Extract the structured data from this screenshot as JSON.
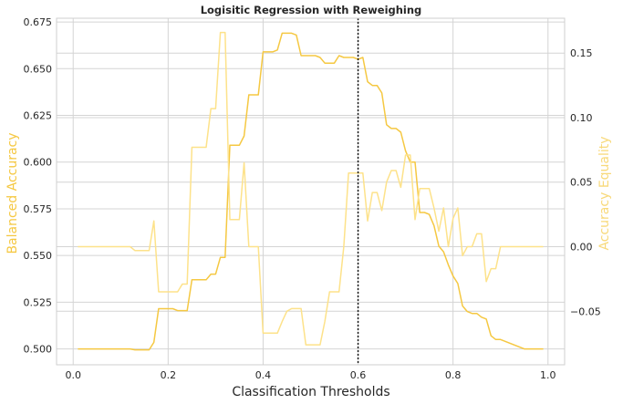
{
  "chart_data": {
    "type": "line",
    "title": "Logisitic Regression with Reweighing",
    "xlabel": "Classification Thresholds",
    "ylabel_left": "Balanced Accuracy",
    "ylabel_right": "Accuracy Equality",
    "xlim": [
      -0.035,
      1.035
    ],
    "ylim_left": [
      0.4915,
      0.677
    ],
    "ylim_right": [
      -0.0915,
      0.177
    ],
    "xticks": [
      0.0,
      0.2,
      0.4,
      0.6,
      0.8,
      1.0
    ],
    "xtick_labels": [
      "0.0",
      "0.2",
      "0.4",
      "0.6",
      "0.8",
      "1.0"
    ],
    "yticks_left": [
      0.5,
      0.525,
      0.55,
      0.575,
      0.6,
      0.625,
      0.65,
      0.675
    ],
    "ytick_labels_left": [
      "0.500",
      "0.525",
      "0.550",
      "0.575",
      "0.600",
      "0.625",
      "0.650",
      "0.675"
    ],
    "yticks_right": [
      -0.05,
      0.0,
      0.05,
      0.1,
      0.15
    ],
    "ytick_labels_right": [
      "−0.05",
      "0.00",
      "0.05",
      "0.10",
      "0.15"
    ],
    "grid": true,
    "vline": {
      "x": 0.6,
      "style": "dotted"
    },
    "colors": {
      "left": "#f5c842",
      "right": "#fde28a",
      "left_label": "#f5c842",
      "right_label": "#f8d97a",
      "vline": "#1a1a1a"
    },
    "series": [
      {
        "axis": "left",
        "x": [
          0.01,
          0.05,
          0.1,
          0.12,
          0.13,
          0.15,
          0.16,
          0.17,
          0.18,
          0.2,
          0.21,
          0.22,
          0.23,
          0.24,
          0.25,
          0.26,
          0.27,
          0.28,
          0.29,
          0.3,
          0.31,
          0.32,
          0.33,
          0.34,
          0.35,
          0.36,
          0.37,
          0.38,
          0.39,
          0.4,
          0.41,
          0.42,
          0.43,
          0.44,
          0.45,
          0.46,
          0.47,
          0.48,
          0.49,
          0.5,
          0.51,
          0.52,
          0.53,
          0.54,
          0.55,
          0.56,
          0.57,
          0.58,
          0.59,
          0.6,
          0.61,
          0.62,
          0.63,
          0.64,
          0.65,
          0.66,
          0.67,
          0.68,
          0.69,
          0.7,
          0.71,
          0.72,
          0.73,
          0.74,
          0.75,
          0.76,
          0.77,
          0.78,
          0.79,
          0.8,
          0.81,
          0.82,
          0.83,
          0.84,
          0.85,
          0.86,
          0.87,
          0.88,
          0.89,
          0.9,
          0.95,
          0.99
        ],
        "y": [
          0.5,
          0.5,
          0.5,
          0.5,
          0.4995,
          0.4995,
          0.4995,
          0.5035,
          0.5215,
          0.5215,
          0.5215,
          0.5205,
          0.5205,
          0.5205,
          0.537,
          0.537,
          0.537,
          0.537,
          0.54,
          0.54,
          0.549,
          0.549,
          0.609,
          0.609,
          0.609,
          0.614,
          0.636,
          0.636,
          0.636,
          0.659,
          0.659,
          0.659,
          0.66,
          0.669,
          0.669,
          0.669,
          0.668,
          0.657,
          0.657,
          0.657,
          0.657,
          0.656,
          0.653,
          0.653,
          0.653,
          0.657,
          0.656,
          0.656,
          0.656,
          0.655,
          0.656,
          0.643,
          0.641,
          0.641,
          0.637,
          0.62,
          0.618,
          0.618,
          0.616,
          0.606,
          0.6,
          0.6,
          0.573,
          0.573,
          0.572,
          0.566,
          0.555,
          0.552,
          0.545,
          0.539,
          0.535,
          0.523,
          0.52,
          0.519,
          0.519,
          0.517,
          0.516,
          0.507,
          0.505,
          0.505,
          0.5,
          0.5
        ]
      },
      {
        "axis": "right",
        "x": [
          0.01,
          0.05,
          0.1,
          0.12,
          0.13,
          0.15,
          0.16,
          0.17,
          0.18,
          0.2,
          0.22,
          0.23,
          0.24,
          0.25,
          0.26,
          0.27,
          0.28,
          0.29,
          0.3,
          0.31,
          0.32,
          0.33,
          0.34,
          0.35,
          0.36,
          0.37,
          0.38,
          0.39,
          0.4,
          0.41,
          0.42,
          0.43,
          0.44,
          0.45,
          0.46,
          0.47,
          0.48,
          0.49,
          0.5,
          0.51,
          0.52,
          0.53,
          0.54,
          0.55,
          0.56,
          0.57,
          0.58,
          0.59,
          0.6,
          0.61,
          0.62,
          0.63,
          0.64,
          0.65,
          0.66,
          0.67,
          0.68,
          0.69,
          0.7,
          0.71,
          0.72,
          0.73,
          0.74,
          0.75,
          0.76,
          0.77,
          0.78,
          0.79,
          0.8,
          0.81,
          0.82,
          0.83,
          0.84,
          0.85,
          0.86,
          0.87,
          0.88,
          0.89,
          0.9,
          0.95,
          0.99
        ],
        "y": [
          0.0,
          0.0,
          0.0,
          0.0,
          -0.003,
          -0.003,
          -0.003,
          0.02,
          -0.035,
          -0.035,
          -0.035,
          -0.029,
          -0.029,
          0.077,
          0.077,
          0.077,
          0.077,
          0.107,
          0.107,
          0.166,
          0.166,
          0.021,
          0.021,
          0.021,
          0.065,
          0.0,
          0.0,
          0.0,
          -0.067,
          -0.067,
          -0.067,
          -0.067,
          -0.058,
          -0.05,
          -0.048,
          -0.048,
          -0.048,
          -0.076,
          -0.076,
          -0.076,
          -0.076,
          -0.058,
          -0.035,
          -0.035,
          -0.035,
          0.0,
          0.057,
          0.057,
          0.057,
          0.057,
          0.02,
          0.042,
          0.042,
          0.028,
          0.05,
          0.059,
          0.059,
          0.046,
          0.071,
          0.071,
          0.021,
          0.045,
          0.045,
          0.045,
          0.03,
          0.012,
          0.03,
          0.0,
          0.022,
          0.03,
          -0.007,
          0.0,
          0.0,
          0.01,
          0.01,
          -0.027,
          -0.017,
          -0.017,
          0.0,
          0.0,
          0.0
        ]
      }
    ]
  }
}
